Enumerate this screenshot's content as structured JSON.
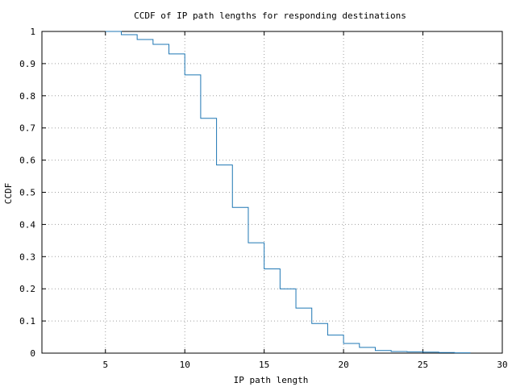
{
  "chart_data": {
    "type": "line",
    "step": true,
    "title": "CCDF of IP path lengths for responding destinations",
    "xlabel": "IP path length",
    "ylabel": "CCDF",
    "xlim": [
      1,
      30
    ],
    "ylim": [
      0,
      1
    ],
    "xticks": [
      5,
      10,
      15,
      20,
      25,
      30
    ],
    "yticks": [
      0,
      0.1,
      0.2,
      0.3,
      0.4,
      0.5,
      0.6,
      0.7,
      0.8,
      0.9,
      1
    ],
    "ytick_labels": [
      "0",
      "0.1",
      "0.2",
      "0.3",
      "0.4",
      "0.5",
      "0.6",
      "0.7",
      "0.8",
      "0.9",
      "1"
    ],
    "grid": true,
    "line_color": "#1f77b4",
    "series": [
      {
        "x": [
          5,
          6,
          7,
          8,
          9,
          10,
          11,
          12,
          13,
          14,
          15,
          16,
          17,
          18,
          19,
          20,
          21,
          22,
          23,
          24,
          25,
          26,
          27
        ],
        "y": [
          1.0,
          0.99,
          0.975,
          0.96,
          0.93,
          0.865,
          0.73,
          0.585,
          0.453,
          0.343,
          0.262,
          0.2,
          0.14,
          0.092,
          0.056,
          0.03,
          0.018,
          0.008,
          0.005,
          0.004,
          0.003,
          0.002,
          0.001
        ]
      }
    ]
  }
}
